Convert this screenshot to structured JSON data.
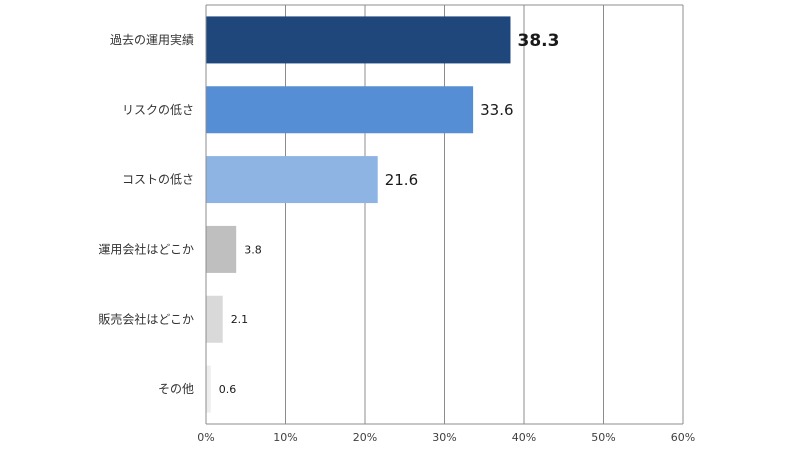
{
  "chart_data": {
    "type": "bar",
    "orientation": "horizontal",
    "categories": [
      "過去の運用実績",
      "リスクの低さ",
      "コストの低さ",
      "運用会社はどこか",
      "販売会社はどこか",
      "その他"
    ],
    "values": [
      38.3,
      33.6,
      21.6,
      3.8,
      2.1,
      0.6
    ],
    "value_labels": [
      "38.3",
      "33.6",
      "21.6",
      "3.8",
      "2.1",
      "0.6"
    ],
    "bar_colors": [
      "#1f477b",
      "#558ed5",
      "#8eb4e3",
      "#bfbfbf",
      "#d9d9d9",
      "#eeeeee"
    ],
    "x_ticks": [
      "0%",
      "10%",
      "20%",
      "30%",
      "40%",
      "50%",
      "60%"
    ],
    "xlim": [
      0,
      60
    ],
    "grid": true,
    "legend": "none",
    "title": "",
    "xlabel": "",
    "ylabel": ""
  }
}
